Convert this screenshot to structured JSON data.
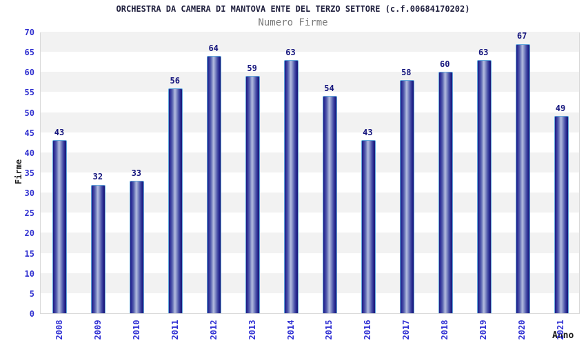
{
  "header": {
    "title": "ORCHESTRA DA CAMERA DI MANTOVA ENTE DEL TERZO SETTORE (c.f.00684170202)",
    "subtitle": "Numero Firme"
  },
  "axes": {
    "y_title": "Firme",
    "x_title": "Anno"
  },
  "colors": {
    "tick_label_blue": "#2f2fd3",
    "value_label_navy": "#15157d",
    "title_navy": "#1f1f3d",
    "subtitle_gray": "#7a7a7a",
    "bar_dark": "#1c1c80",
    "bar_highlight": "#b3bbe0",
    "bar_border": "#63a8dc",
    "band_gray": "#f2f2f2",
    "band_white": "#ffffff",
    "plot_border": "#d9d9d9"
  },
  "chart_data": {
    "type": "bar",
    "title": "ORCHESTRA DA CAMERA DI MANTOVA ENTE DEL TERZO SETTORE (c.f.00684170202)",
    "subtitle": "Numero Firme",
    "xlabel": "Anno",
    "ylabel": "Firme",
    "categories": [
      "2008",
      "2009",
      "2010",
      "2011",
      "2012",
      "2013",
      "2014",
      "2015",
      "2016",
      "2017",
      "2018",
      "2019",
      "2020",
      "2021"
    ],
    "values": [
      43,
      32,
      33,
      56,
      64,
      59,
      63,
      54,
      43,
      58,
      60,
      63,
      67,
      49
    ],
    "ylim": [
      0,
      70
    ],
    "y_ticks": [
      0,
      5,
      10,
      15,
      20,
      25,
      30,
      35,
      40,
      45,
      50,
      55,
      60,
      65,
      70
    ],
    "bar_value_labels_shown": true,
    "legend": "none",
    "grid": "alternating horizontal bands every 5 units (white 0-5, gray 5-10, repeating)",
    "x_tick_rotation_degrees": -90
  }
}
